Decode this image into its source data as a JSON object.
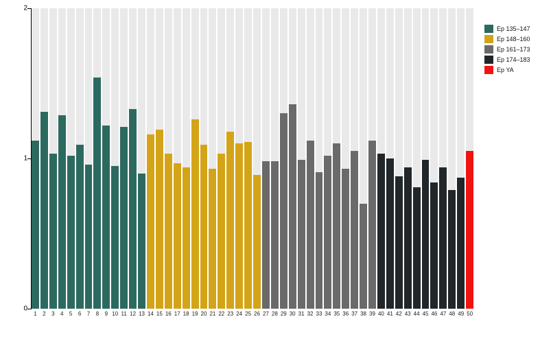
{
  "chart_data": {
    "type": "bar",
    "title": "",
    "xlabel": "",
    "ylabel": "",
    "ylim": [
      0,
      2
    ],
    "yticks": [
      0,
      1,
      2
    ],
    "grid": false,
    "legend_position": "top-right",
    "plot_band_color": "#e9e9e9",
    "categories": [
      "1",
      "2",
      "3",
      "4",
      "5",
      "6",
      "7",
      "8",
      "9",
      "10",
      "11",
      "12",
      "13",
      "14",
      "15",
      "16",
      "17",
      "18",
      "19",
      "20",
      "21",
      "22",
      "23",
      "24",
      "25",
      "26",
      "27",
      "28",
      "29",
      "30",
      "31",
      "32",
      "33",
      "34",
      "35",
      "36",
      "37",
      "38",
      "39",
      "40",
      "41",
      "42",
      "43",
      "44",
      "45",
      "46",
      "47",
      "48",
      "49",
      "50"
    ],
    "values": [
      1.12,
      1.31,
      1.03,
      1.29,
      1.02,
      1.09,
      0.96,
      1.54,
      1.22,
      0.95,
      1.21,
      1.33,
      0.9,
      1.16,
      1.19,
      1.03,
      0.97,
      0.94,
      1.26,
      1.09,
      0.93,
      1.03,
      1.18,
      1.1,
      1.11,
      0.89,
      0.98,
      0.98,
      1.3,
      1.36,
      0.99,
      1.12,
      0.91,
      1.02,
      1.1,
      0.93,
      1.05,
      0.7,
      1.12,
      1.03,
      1.0,
      0.88,
      0.94,
      0.81,
      0.99,
      0.84,
      0.94,
      0.79,
      0.87,
      1.05
    ],
    "groups": [
      {
        "label": "Ep 135–147",
        "color": "#2c6a60",
        "start": 1,
        "end": 13
      },
      {
        "label": "Ep 148–160",
        "color": "#d4a418",
        "start": 14,
        "end": 26
      },
      {
        "label": "Ep 161–173",
        "color": "#6a6a6a",
        "start": 27,
        "end": 39
      },
      {
        "label": "Ep 174–183",
        "color": "#20262a",
        "start": 40,
        "end": 49
      },
      {
        "label": "Ep YA",
        "color": "#f01410",
        "start": 50,
        "end": 50
      }
    ]
  }
}
